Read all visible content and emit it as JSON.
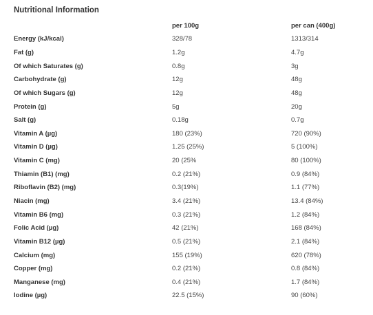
{
  "title": "Nutritional Information",
  "headers": {
    "name": "",
    "per100": "per 100g",
    "perCan": "per can (400g)"
  },
  "rows": [
    {
      "name": "Energy (kJ/kcal)",
      "per100": "328/78",
      "perCan": "1313/314"
    },
    {
      "name": "Fat (g)",
      "per100": "1.2g",
      "perCan": "4.7g"
    },
    {
      "name": "Of which Saturates (g)",
      "per100": "0.8g",
      "perCan": "3g"
    },
    {
      "name": "Carbohydrate (g)",
      "per100": "12g",
      "perCan": "48g"
    },
    {
      "name": "Of which Sugars (g)",
      "per100": "12g",
      "perCan": "48g"
    },
    {
      "name": "Protein (g)",
      "per100": "5g",
      "perCan": "20g"
    },
    {
      "name": "Salt (g)",
      "per100": "0.18g",
      "perCan": "0.7g"
    },
    {
      "name": "Vitamin A (µg)",
      "per100": "180 (23%)",
      "perCan": "720 (90%)"
    },
    {
      "name": "Vitamin D (µg)",
      "per100": "1.25 (25%)",
      "perCan": "5 (100%)"
    },
    {
      "name": "Vitamin C (mg)",
      "per100": "20 (25%",
      "perCan": "80 (100%)"
    },
    {
      "name": "Thiamin (B1) (mg)",
      "per100": "0.2 (21%)",
      "perCan": "0.9 (84%)"
    },
    {
      "name": "Riboflavin (B2) (mg)",
      "per100": "0.3(19%)",
      "perCan": "1.1 (77%)"
    },
    {
      "name": "Niacin (mg)",
      "per100": "3.4 (21%)",
      "perCan": "13.4 (84%)"
    },
    {
      "name": "Vitamin B6 (mg)",
      "per100": "0.3 (21%)",
      "perCan": "1.2 (84%)"
    },
    {
      "name": "Folic Acid (µg)",
      "per100": "42 (21%)",
      "perCan": "168 (84%)"
    },
    {
      "name": "Vitamin B12 (µg)",
      "per100": "0.5 (21%)",
      "perCan": "2.1 (84%)"
    },
    {
      "name": "Calcium (mg)",
      "per100": "155 (19%)",
      "perCan": "620 (78%)"
    },
    {
      "name": "Copper (mg)",
      "per100": "0.2 (21%)",
      "perCan": "0.8 (84%)"
    },
    {
      "name": "Manganese (mg)",
      "per100": "0.4 (21%)",
      "perCan": "1.7 (84%)"
    },
    {
      "name": "Iodine (µg)",
      "per100": "22.5 (15%)",
      "perCan": "90 (60%)"
    }
  ]
}
